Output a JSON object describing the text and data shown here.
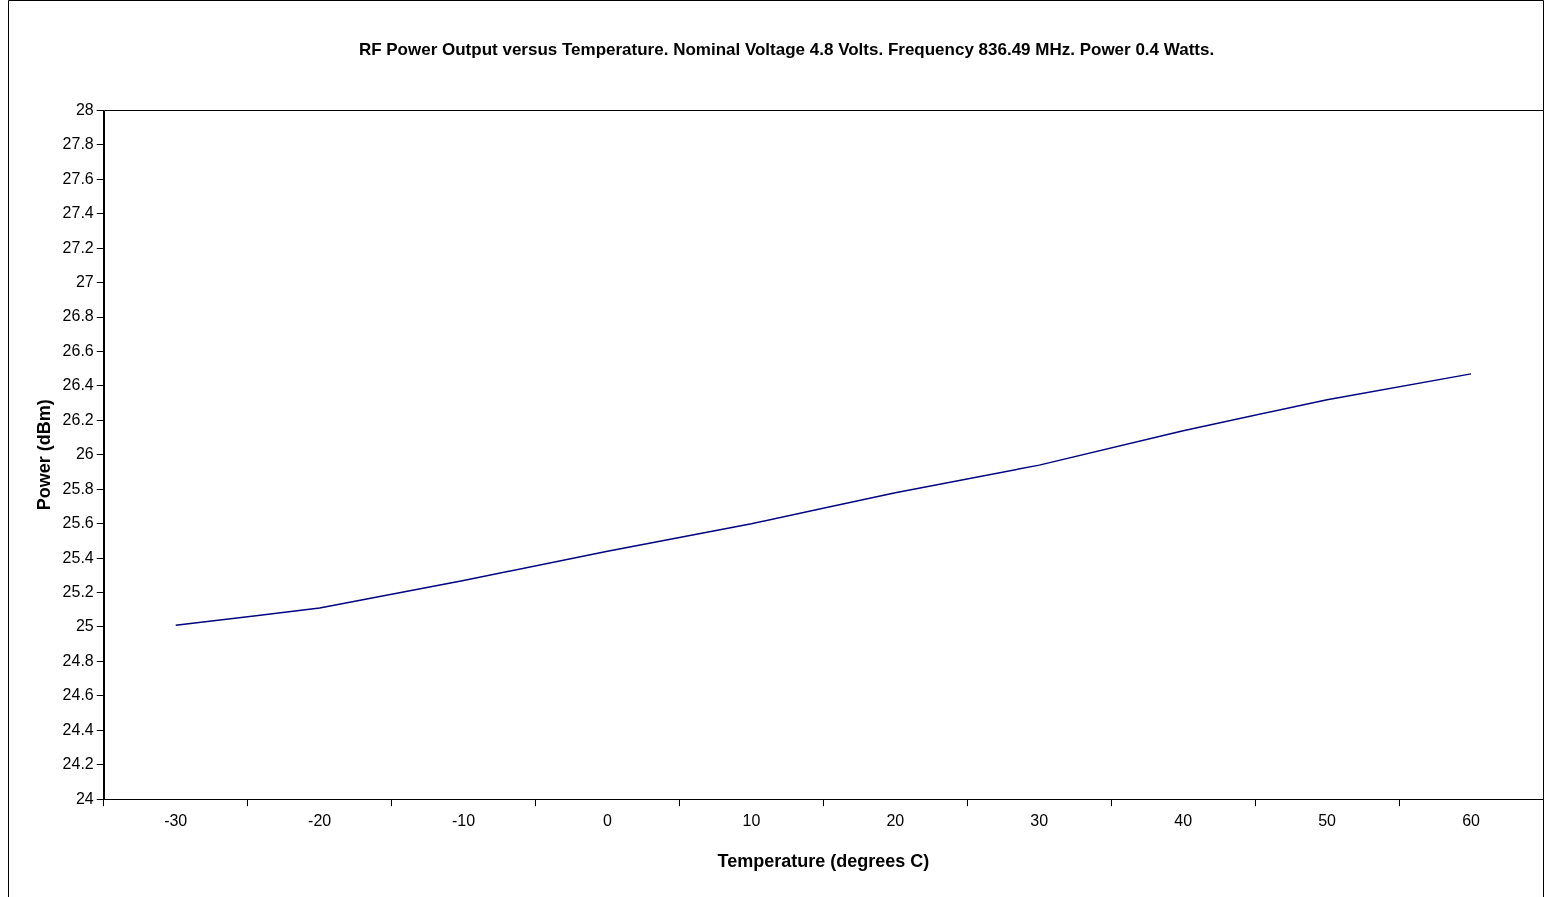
{
  "chart_data": {
    "type": "line",
    "title": "RF Power Output versus Temperature. Nominal Voltage 4.8 Volts. Frequency 836.49 MHz. Power 0.4 Watts.",
    "xlabel": "Temperature (degrees C)",
    "ylabel": "Power (dBm)",
    "categories": [
      "-30",
      "-20",
      "-10",
      "0",
      "10",
      "20",
      "30",
      "40",
      "50",
      "60"
    ],
    "series": [
      {
        "color": "#000080",
        "values": [
          25.01,
          25.11,
          25.27,
          25.44,
          25.6,
          25.78,
          25.94,
          26.14,
          26.32,
          26.47
        ]
      }
    ],
    "ylim": [
      24,
      28
    ],
    "yticks": [
      24,
      24.2,
      24.4,
      24.6,
      24.8,
      25,
      25.2,
      25.4,
      25.6,
      25.8,
      26,
      26.2,
      26.4,
      26.6,
      26.8,
      27,
      27.2,
      27.4,
      27.6,
      27.8,
      28
    ],
    "grid": false,
    "legend": false,
    "marker": "none",
    "line_style": "solid"
  }
}
